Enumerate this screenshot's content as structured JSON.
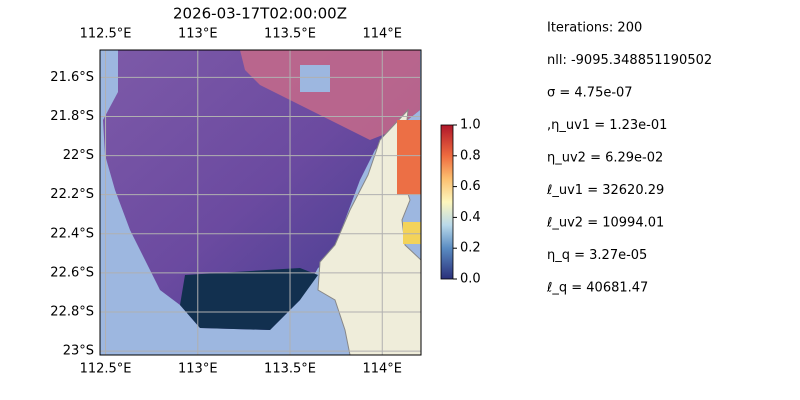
{
  "chart_data": {
    "type": "map",
    "title": "2026-03-17T02:00:00Z",
    "xlim": [
      112.47,
      114.21
    ],
    "ylim": [
      -23.02,
      -21.46
    ],
    "xticks": [
      {
        "value": 112.5,
        "label": "112.5°E"
      },
      {
        "value": 113,
        "label": "113°E"
      },
      {
        "value": 113.5,
        "label": "113.5°E"
      },
      {
        "value": 114,
        "label": "114°E"
      }
    ],
    "yticks": [
      {
        "value": -21.6,
        "label": "21.6°S"
      },
      {
        "value": -21.8,
        "label": "21.8°S"
      },
      {
        "value": -22,
        "label": "22°S"
      },
      {
        "value": -22.2,
        "label": "22.2°S"
      },
      {
        "value": -22.4,
        "label": "22.4°S"
      },
      {
        "value": -22.6,
        "label": "22.6°S"
      },
      {
        "value": -22.8,
        "label": "22.8°S"
      },
      {
        "value": -23,
        "label": "23°S"
      }
    ],
    "grid": true,
    "colorbar": {
      "clim": [
        0,
        1
      ],
      "ticks": [
        {
          "value": 0,
          "label": "0.0"
        },
        {
          "value": 0.2,
          "label": "0.2"
        },
        {
          "value": 0.4,
          "label": "0.4"
        },
        {
          "value": 0.6,
          "label": "0.6"
        },
        {
          "value": 0.8,
          "label": "0.8"
        },
        {
          "value": 1,
          "label": "1.0"
        }
      ]
    },
    "annotations": [
      "Iterations: 200",
      "nll: -9095.348851190502",
      "σ = 4.75e-07",
      ",η_uv1 = 1.23e-01",
      "η_uv2 = 6.29e-02",
      "ℓ_uv1 = 32620.29",
      "ℓ_uv2 = 10994.01",
      "η_q = 3.27e-05",
      "ℓ_q = 40681.47"
    ]
  }
}
